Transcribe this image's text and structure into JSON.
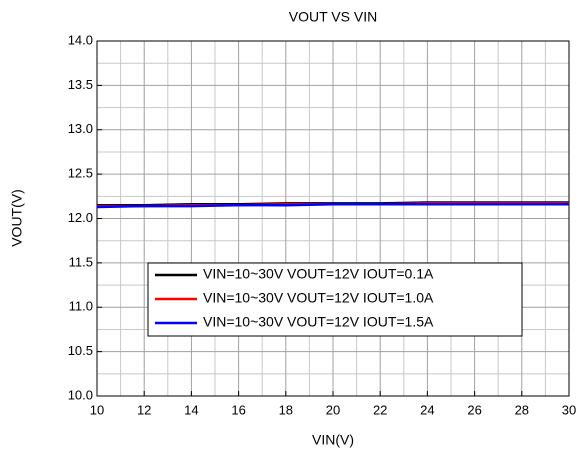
{
  "chart_data": {
    "type": "line",
    "title": "VOUT VS VIN",
    "xlabel": "VIN(V)",
    "ylabel": "VOUT(V)",
    "x": [
      10,
      12,
      14,
      16,
      18,
      20,
      22,
      24,
      26,
      28,
      30
    ],
    "series": [
      {
        "name": "VIN=10~30V VOUT=12V IOUT=0.1A",
        "color": "#000000",
        "values": [
          12.15,
          12.15,
          12.16,
          12.16,
          12.17,
          12.17,
          12.17,
          12.18,
          12.18,
          12.18,
          12.18
        ]
      },
      {
        "name": "VIN=10~30V VOUT=12V IOUT=1.0A",
        "color": "#ff0000",
        "values": [
          12.14,
          12.14,
          12.15,
          12.15,
          12.16,
          12.16,
          12.16,
          12.17,
          12.17,
          12.17,
          12.17
        ]
      },
      {
        "name": "VIN=10~30V VOUT=12V IOUT=1.5A",
        "color": "#0000ff",
        "values": [
          12.13,
          12.14,
          12.14,
          12.15,
          12.15,
          12.16,
          12.16,
          12.16,
          12.16,
          12.16,
          12.16
        ]
      }
    ],
    "xlim": [
      10,
      30
    ],
    "ylim": [
      10,
      14
    ],
    "xticks": [
      10,
      12,
      14,
      16,
      18,
      20,
      22,
      24,
      26,
      28,
      30
    ],
    "yticks": [
      {
        "value": 10,
        "label": "10.0"
      },
      10.5,
      {
        "value": 11,
        "label": "11.0"
      },
      11.5,
      {
        "value": 12,
        "label": "12.0"
      },
      12.5,
      {
        "value": 13,
        "label": "13.0"
      },
      13.5,
      {
        "value": 14,
        "label": "14.0"
      }
    ],
    "xminorticks": [
      11,
      13,
      15,
      17,
      19,
      21,
      23,
      25,
      27,
      29
    ],
    "yminorticks": [
      10.25,
      10.75,
      11.25,
      11.75,
      12.25,
      12.75,
      13.25,
      13.75
    ],
    "grid": true,
    "legend": "lower center"
  }
}
